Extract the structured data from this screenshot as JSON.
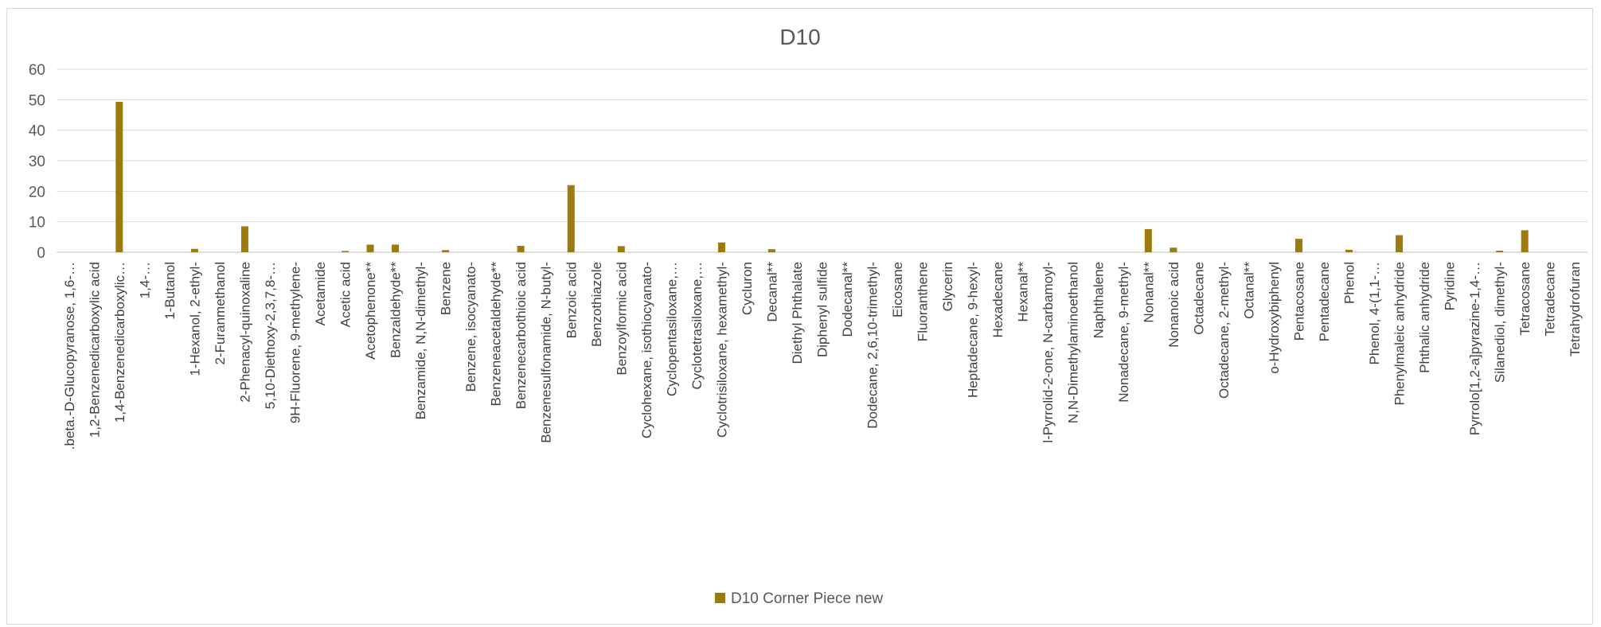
{
  "chart_data": {
    "type": "bar",
    "title": "D10",
    "xlabel": "",
    "ylabel": "",
    "ylim": [
      0,
      60
    ],
    "yticks": [
      0,
      10,
      20,
      30,
      40,
      50,
      60
    ],
    "grid": true,
    "legend_position": "bottom",
    "bar_color": "#9C7A0C",
    "categories": [
      ".beta.-D-Glucopyranose, 1,6-…",
      "1,2-Benzenedicarboxylic acid",
      "1,4-Benzenedicarboxylic…",
      "1,4-…",
      "1-Butanol",
      "1-Hexanol, 2-ethyl-",
      "2-Furanmethanol",
      "2-Phenacyl-quinoxaline",
      "5,10-Diethoxy-2,3,7,8-…",
      "9H-Fluorene, 9-methylene-",
      "Acetamide",
      "Acetic acid",
      "Acetophenone**",
      "Benzaldehyde**",
      "Benzamide, N,N-dimethyl-",
      "Benzene",
      "Benzene, isocyanato-",
      "Benzeneacetaldehyde**",
      "Benzenecarbothioic acid",
      "Benzenesulfonamide, N-butyl-",
      "Benzoic acid",
      "Benzothiazole",
      "Benzoylformic acid",
      "Cyclohexane, isothiocyanato-",
      "Cyclopentasiloxane,…",
      "Cyclotetrasiloxane,…",
      "Cyclotrisiloxane, hexamethyl-",
      "Cycluron",
      "Decanal**",
      "Diethyl Phthalate",
      "Diphenyl sulfide",
      "Dodecanal**",
      "Dodecane, 2,6,10-trimethyl-",
      "Eicosane",
      "Fluoranthene",
      "Glycerin",
      "Heptadecane, 9-hexyl-",
      "Hexadecane",
      "Hexanal**",
      "l-Pyrrolid-2-one, N-carbamoyl-",
      "N,N-Dimethylaminoethanol",
      "Naphthalene",
      "Nonadecane, 9-methyl-",
      "Nonanal**",
      "Nonanoic acid",
      "Octadecane",
      "Octadecane, 2-methyl-",
      "Octanal**",
      "o-Hydroxybiphenyl",
      "Pentacosane",
      "Pentadecane",
      "Phenol",
      "Phenol, 4-(1,1-…",
      "Phenylmaleic anhydride",
      "Phthalic anhydride",
      "Pyridine",
      "Pyrrolo[1,2-a]pyrazine-1,4-…",
      "Silanediol, dimethyl-",
      "Tetracosane",
      "Tetradecane",
      "Tetrahydrofuran"
    ],
    "series": [
      {
        "name": "D10 Corner Piece new",
        "values": [
          0,
          0,
          49.3,
          0,
          0,
          1.1,
          0,
          8.5,
          0,
          0,
          0,
          0.4,
          2.5,
          2.5,
          0,
          0.7,
          0,
          0,
          2.1,
          0,
          22.0,
          0,
          2.0,
          0,
          0,
          0,
          3.2,
          0,
          1.0,
          0,
          0,
          0,
          0,
          0,
          0,
          0,
          0,
          0,
          0,
          0,
          0,
          0,
          0,
          7.6,
          1.5,
          0,
          0,
          0,
          0,
          4.4,
          0,
          0.8,
          0,
          5.6,
          0,
          0,
          0,
          0.5,
          7.2,
          0,
          0
        ]
      }
    ]
  }
}
